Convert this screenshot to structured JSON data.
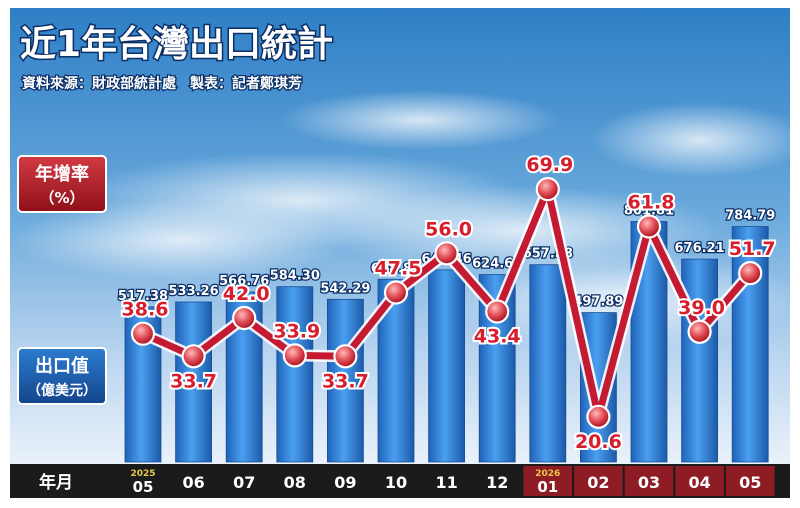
{
  "title": "近1年台灣出口統計",
  "source": "資料來源：財政部統計處　製表：記者鄭琪芳",
  "badge_rate": {
    "line1": "年增率",
    "line2": "（%）"
  },
  "badge_export": {
    "line1": "出口值",
    "line2": "（億美元）"
  },
  "xaxis_label": "年月",
  "colors": {
    "bar": "#2f83d6",
    "line": "#c41a32",
    "marker": "#d8414a",
    "rate_label": "#d81e2c",
    "axis_bg": "#1b1b1b",
    "axis_bg_2026": "#8e1c24",
    "year_text": "#e8c94a"
  },
  "chart_data": {
    "type": "bar",
    "title": "近1年台灣出口統計",
    "categories": [
      "05",
      "06",
      "07",
      "08",
      "09",
      "10",
      "11",
      "12",
      "01",
      "02",
      "03",
      "04",
      "05"
    ],
    "year_markers": [
      {
        "index": 0,
        "year": "2025"
      },
      {
        "index": 8,
        "year": "2026"
      }
    ],
    "series": [
      {
        "name": "出口值（億美元）",
        "type": "bar",
        "values": [
          517.38,
          533.26,
          566.76,
          584.3,
          542.29,
          608.89,
          640.46,
          624.66,
          657.58,
          497.89,
          801.81,
          676.21,
          784.79
        ],
        "labels": [
          "517.38",
          "533.26",
          "566.76",
          "584.30",
          "542.29",
          "608.89",
          "640.46",
          "624.66",
          "657.58",
          "497.89",
          "801.81",
          "676.21",
          "784.79"
        ]
      },
      {
        "name": "年增率（%）",
        "type": "line",
        "values": [
          38.6,
          33.7,
          42.0,
          33.9,
          33.7,
          47.5,
          56.0,
          43.4,
          69.9,
          20.6,
          61.8,
          39.0,
          51.7
        ],
        "labels": [
          "38.6",
          "33.7",
          "42.0",
          "33.9",
          "33.7",
          "47.5",
          "56.0",
          "43.4",
          "69.9",
          "20.6",
          "61.8",
          "39.0",
          "51.7"
        ],
        "label_positions": [
          "above",
          "below",
          "above",
          "above",
          "below",
          "above",
          "above",
          "below",
          "above",
          "below",
          "above",
          "above",
          "above"
        ]
      }
    ],
    "legend": "none",
    "grid": false
  }
}
